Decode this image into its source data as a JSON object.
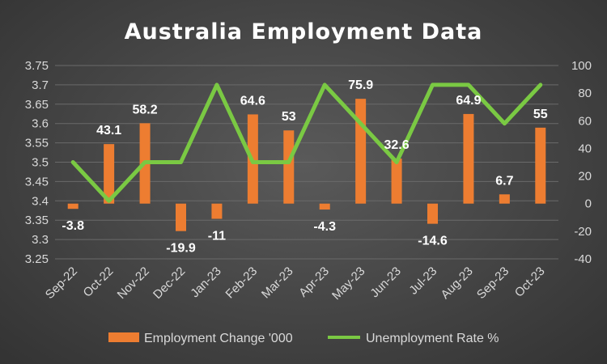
{
  "chart_data": {
    "type": "bar+line",
    "title": "Australia Employment Data",
    "categories": [
      "Sep-22",
      "Oct-22",
      "Nov-22",
      "Dec-22",
      "Jan-23",
      "Feb-23",
      "Mar-23",
      "Apr-23",
      "May-23",
      "Jun-23",
      "Jul-23",
      "Aug-23",
      "Sep-23",
      "Oct-23"
    ],
    "series": [
      {
        "name": "Employment Change '000",
        "type": "bar",
        "axis": "right",
        "color": "#ed7d31",
        "values": [
          -3.8,
          43.1,
          58.2,
          -19.9,
          -11,
          64.6,
          53,
          -4.3,
          75.9,
          32.6,
          -14.6,
          64.9,
          6.7,
          55
        ],
        "labels": [
          "-3.8",
          "43.1",
          "58.2",
          "-19.9",
          "-11",
          "64.6",
          "53",
          "-4.3",
          "75.9",
          "32.6",
          "-14.6",
          "64.9",
          "6.7",
          "55"
        ]
      },
      {
        "name": "Unemployment Rate %",
        "type": "line",
        "axis": "left",
        "color": "#7ac943",
        "values": [
          3.5,
          3.4,
          3.5,
          3.5,
          3.7,
          3.5,
          3.5,
          3.7,
          3.6,
          3.5,
          3.7,
          3.7,
          3.6,
          3.7
        ]
      }
    ],
    "left_axis": {
      "min": 3.25,
      "max": 3.75,
      "step": 0.05,
      "ticks": [
        "3.25",
        "3.3",
        "3.35",
        "3.4",
        "3.45",
        "3.5",
        "3.55",
        "3.6",
        "3.65",
        "3.7",
        "3.75"
      ]
    },
    "right_axis": {
      "min": -40,
      "max": 100,
      "step": 20,
      "ticks": [
        "-40",
        "-20",
        "0",
        "20",
        "40",
        "60",
        "80",
        "100"
      ]
    },
    "grid": true,
    "legend": "bottom"
  }
}
